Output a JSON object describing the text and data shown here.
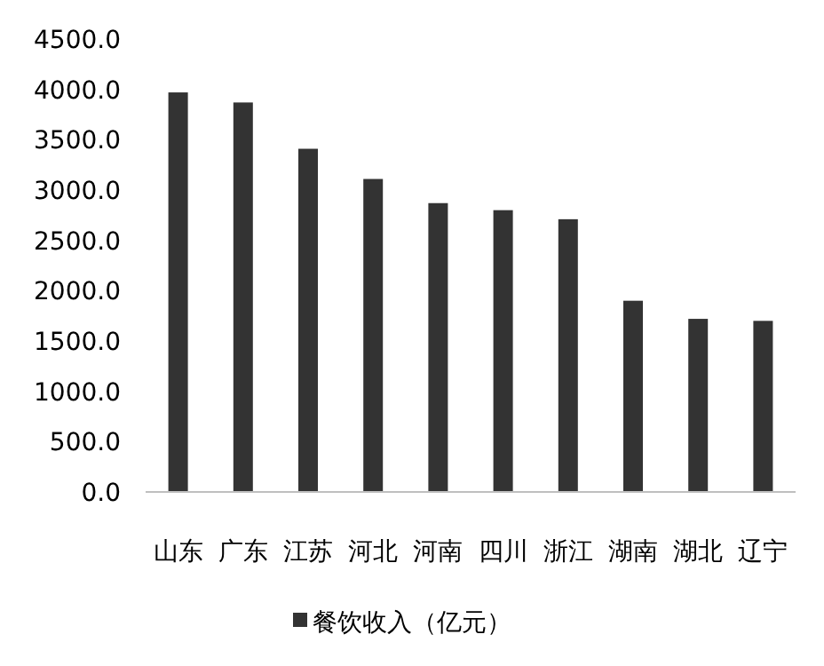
{
  "chart_data": {
    "type": "bar",
    "categories": [
      "山东",
      "广东",
      "江苏",
      "河北",
      "河南",
      "四川",
      "浙江",
      "湖南",
      "湖北",
      "辽宁"
    ],
    "series": [
      {
        "name": "餐饮收入（亿元）",
        "color": "#333333",
        "values": [
          3970,
          3870,
          3410,
          3110,
          2870,
          2800,
          2710,
          1900,
          1720,
          1700
        ]
      }
    ],
    "ylim": [
      0,
      4500
    ],
    "yticks": [
      {
        "value": 0,
        "label": "0.0"
      },
      {
        "value": 500,
        "label": "500.0"
      },
      {
        "value": 1000,
        "label": "1000.0"
      },
      {
        "value": 1500,
        "label": "1500.0"
      },
      {
        "value": 2000,
        "label": "2000.0"
      },
      {
        "value": 2500,
        "label": "2500.0"
      },
      {
        "value": 3000,
        "label": "3000.0"
      },
      {
        "value": 3500,
        "label": "3500.0"
      },
      {
        "value": 4000,
        "label": "4000.0"
      },
      {
        "value": 4500,
        "label": "4500.0"
      }
    ],
    "grid": false,
    "legend": "bottom"
  }
}
